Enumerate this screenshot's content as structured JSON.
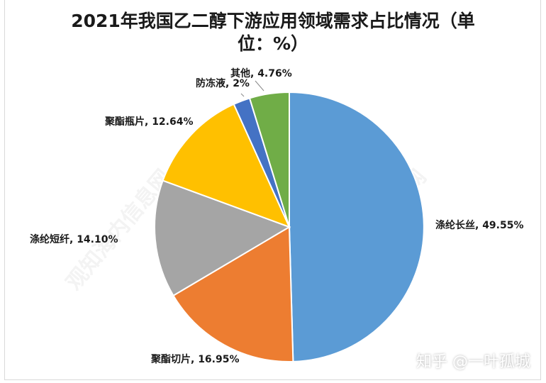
{
  "watermark": {
    "text": "观知海内信息网",
    "footer": "知乎 @一叶孤城"
  },
  "chart_data": {
    "type": "pie",
    "title": [
      "2021年我国乙二醇下游应用领域需求占比情况（单",
      "位：%）"
    ],
    "slices": [
      {
        "label": "涤纶长丝",
        "value": 49.55,
        "display": "49.55%",
        "color": "#5b9bd5"
      },
      {
        "label": "聚酯切片",
        "value": 16.95,
        "display": "16.95%",
        "color": "#ed7d31"
      },
      {
        "label": "涤纶短纤",
        "value": 14.1,
        "display": "14.10%",
        "color": "#a5a5a5"
      },
      {
        "label": "聚酯瓶片",
        "value": 12.64,
        "display": "12.64%",
        "color": "#ffc000"
      },
      {
        "label": "防冻液",
        "value": 2,
        "display": "2%",
        "color": "#4472c4"
      },
      {
        "label": "其他",
        "value": 4.76,
        "display": "4.76%",
        "color": "#70ad47"
      }
    ]
  }
}
